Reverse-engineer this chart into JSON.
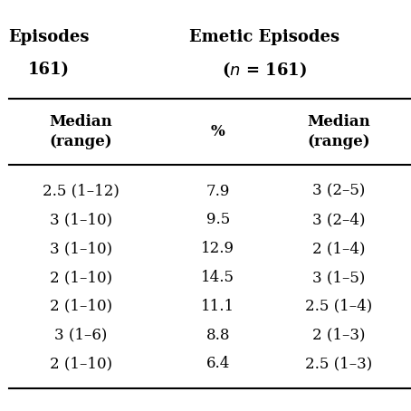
{
  "header_row1_col1": "Episodes",
  "header_row1_col2": "Emetic Episodes",
  "header_row2_col1": "161)",
  "header_row2_col2": "( n = 161)",
  "subheader_col1": "Median\n(range)",
  "subheader_col2": "%",
  "subheader_col3": "Median\n(range)",
  "col1_data": [
    "2.5 (1–12)",
    "3 (1–10)",
    "3 (1–10)",
    "2 (1–10)",
    "2 (1–10)",
    "3 (1–6)",
    "2 (1–10)"
  ],
  "col2_data": [
    "7.9",
    "9.5",
    "12.9",
    "14.5",
    "11.1",
    "8.8",
    "6.4"
  ],
  "col3_data": [
    "3 (2–5)",
    "3 (2–4)",
    "2 (1–4)",
    "3 (1–5)",
    "2.5 (1–4)",
    "2 (1–3)",
    "2.5 (1–3)"
  ],
  "bg_color": "#ffffff",
  "text_color": "#000000",
  "line_color": "#000000"
}
